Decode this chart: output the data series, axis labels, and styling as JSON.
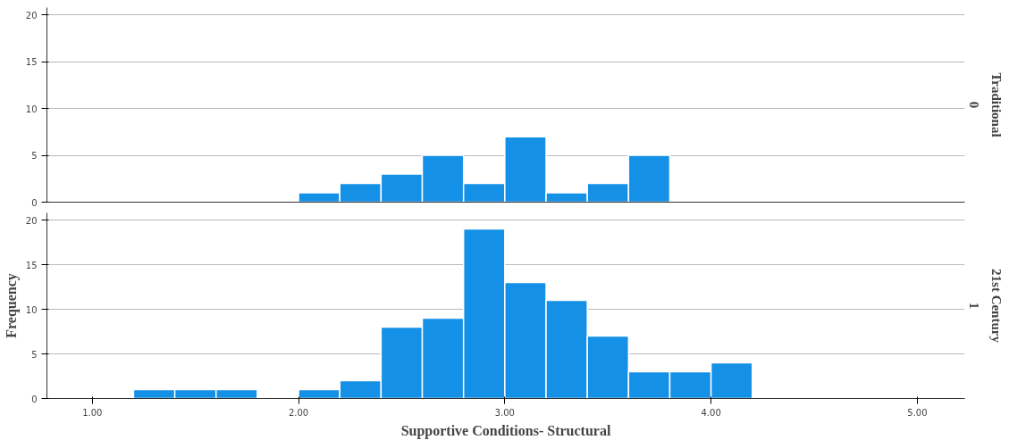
{
  "chart_data": [
    {
      "type": "histogram",
      "bins": [
        2.0,
        2.2,
        2.4,
        2.6,
        2.8,
        3.0,
        3.2,
        3.4,
        3.6,
        3.8
      ],
      "values": [
        1,
        2,
        3,
        5,
        2,
        7,
        1,
        2,
        5
      ],
      "color": "#1490e6",
      "xlim": [
        0.78,
        5.23
      ],
      "xticks": [
        {
          "value": 1,
          "label": null
        },
        {
          "value": 2,
          "label": null
        },
        {
          "value": 3,
          "label": null
        },
        {
          "value": 4,
          "label": null
        },
        {
          "value": 5,
          "label": null
        }
      ],
      "ylim": [
        0,
        20.8
      ],
      "yticks": [
        0,
        5,
        10,
        15,
        20
      ],
      "grid": "y",
      "tick_labels": "y",
      "annotations": [
        "Traditional",
        "0"
      ]
    },
    {
      "type": "histogram",
      "bins": [
        1.2,
        1.4,
        1.6,
        1.8,
        2.0,
        2.2,
        2.4,
        2.6,
        2.8,
        3.0,
        3.2,
        3.4,
        3.6,
        3.8,
        4.0,
        4.2
      ],
      "values": [
        1,
        1,
        1,
        0,
        1,
        2,
        8,
        9,
        19,
        13,
        11,
        7,
        3,
        3,
        4
      ],
      "color": "#1490e6",
      "xlim": [
        0.78,
        5.23
      ],
      "xticks": [
        {
          "value": 1,
          "label": "1.00"
        },
        {
          "value": 2,
          "label": "2.00"
        },
        {
          "value": 3,
          "label": "3.00"
        },
        {
          "value": 4,
          "label": "4.00"
        },
        {
          "value": 5,
          "label": "5.00"
        }
      ],
      "ylim": [
        0,
        20.8
      ],
      "yticks": [
        0,
        5,
        10,
        15,
        20
      ],
      "grid": "y",
      "xlabel": "Supportive Conditions- Structural",
      "ylabel": "Frequency",
      "annotations": [
        "21st Century",
        "1"
      ]
    }
  ]
}
